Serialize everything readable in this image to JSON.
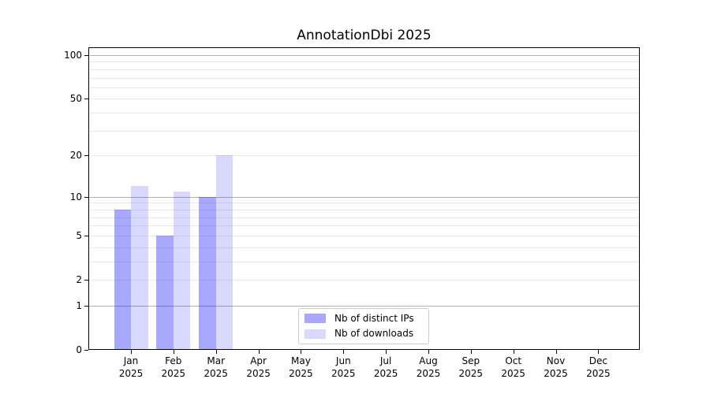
{
  "chart_data": {
    "type": "bar",
    "title": "AnnotationDbi 2025",
    "categories": [
      "Jan",
      "Feb",
      "Mar",
      "Apr",
      "May",
      "Jun",
      "Jul",
      "Aug",
      "Sep",
      "Oct",
      "Nov",
      "Dec"
    ],
    "category_year": "2025",
    "series": [
      {
        "name": "Nb of distinct IPs",
        "color": "rgba(0,0,255,0.34)",
        "values": [
          8,
          5,
          10,
          0,
          0,
          0,
          0,
          0,
          0,
          0,
          0,
          0
        ]
      },
      {
        "name": "Nb of downloads",
        "color": "rgba(0,0,255,0.15)",
        "values": [
          12,
          11,
          20,
          0,
          0,
          0,
          0,
          0,
          0,
          0,
          0,
          0
        ]
      }
    ],
    "yscale": "log1p",
    "ylim": [
      0,
      113
    ],
    "yticks": [
      0,
      1,
      2,
      5,
      10,
      20,
      50,
      100
    ],
    "grid": {
      "major": [
        1,
        10,
        100
      ],
      "minor": [
        2,
        3,
        4,
        5,
        6,
        7,
        8,
        9,
        20,
        30,
        40,
        50,
        60,
        70,
        80,
        90
      ]
    },
    "xlabel": "",
    "ylabel": "",
    "legend": {
      "position": "lower center",
      "entries": [
        "Nb of distinct IPs",
        "Nb of downloads"
      ]
    }
  }
}
